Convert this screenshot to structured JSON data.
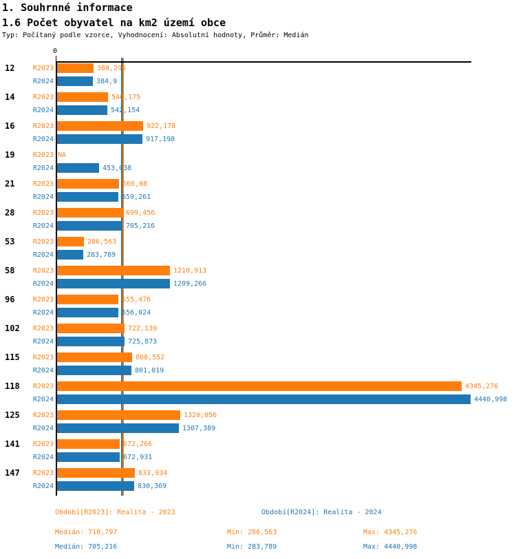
{
  "header": {
    "title": "1. Souhrnné informace",
    "subtitle": "1.6 Počet obyvatel na km2 území obce",
    "meta": "Typ: Počítaný podle vzorce, Vyhodnocení: Absolutní hodnoty, Průměr: Medián"
  },
  "colors": {
    "r2023": "#ff7f0e",
    "r2024": "#1f77b4",
    "axis": "#000000"
  },
  "chart_data": {
    "type": "bar",
    "orientation": "horizontal",
    "title": "1.6 Počet obyvatel na km2 území obce",
    "x_axis": {
      "zero_label": "0",
      "min": 0,
      "max": 4440.998,
      "grid": false
    },
    "na_label": "NA",
    "categories": [
      "12",
      "14",
      "16",
      "19",
      "21",
      "28",
      "53",
      "58",
      "96",
      "102",
      "115",
      "118",
      "125",
      "141",
      "147"
    ],
    "series": [
      {
        "name": "R2023",
        "color": "#ff7f0e",
        "values": [
          388.296,
          546.175,
          922.178,
          null,
          666.08,
          699.456,
          286.563,
          1210.913,
          655.476,
          722.139,
          808.552,
          4345.276,
          1320.056,
          672.266,
          833.934
        ],
        "value_labels": [
          "388,296",
          "546,175",
          "922,178",
          "NA",
          "666,08",
          "699,456",
          "286,563",
          "1210,913",
          "655,476",
          "722,139",
          "808,552",
          "4345,276",
          "1320,056",
          "672,266",
          "833,934"
        ],
        "median": 710.797
      },
      {
        "name": "R2024",
        "color": "#1f77b4",
        "values": [
          384.9,
          542.154,
          917.198,
          453.038,
          659.261,
          705.216,
          283.789,
          1209.266,
          656.024,
          725.873,
          801.019,
          4440.998,
          1307.389,
          672.931,
          830.369
        ],
        "value_labels": [
          "384,9",
          "542,154",
          "917,198",
          "453,038",
          "659,261",
          "705,216",
          "283,789",
          "1209,266",
          "656,024",
          "725,873",
          "801,019",
          "4440,998",
          "1307,389",
          "672,931",
          "830,369"
        ],
        "median": 705.216
      }
    ],
    "legend_position": "bottom"
  },
  "legend": [
    {
      "label": "Období[R2023]: Realita - 2023",
      "color": "#ff7f0e"
    },
    {
      "label": "Období[R2024]: Realita - 2024",
      "color": "#1f77b4"
    }
  ],
  "stats": [
    {
      "median": "Medián: 710,797",
      "min": "Min: 286,563",
      "max": "Max: 4345,276"
    },
    {
      "median": "Medián: 705,216",
      "min": "Min: 283,789",
      "max": "Max: 4440,998"
    }
  ]
}
